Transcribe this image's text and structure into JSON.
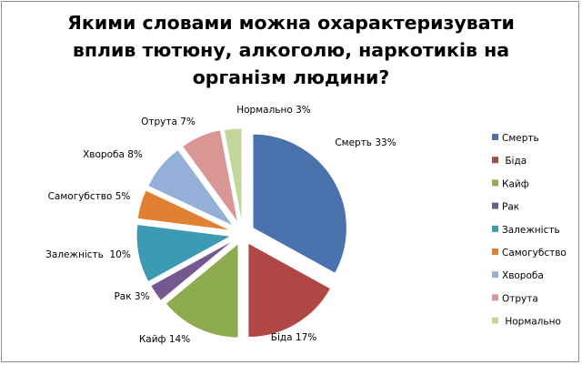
{
  "chart_data": {
    "type": "pie",
    "title": "Якими словами можна охарактеризувати\nвплив тютюну, алкоголю, наркотиків на\nорганізм людини?",
    "exploded": true,
    "legend_position": "right",
    "slices": [
      {
        "name": "Смерть",
        "legend_label": "Смерть",
        "value": 33,
        "label": "Смерть 33%",
        "color": "#4a73ad"
      },
      {
        "name": "Біда",
        "legend_label": " Біда",
        "value": 17,
        "label": "Біда 17%",
        "color": "#b04744"
      },
      {
        "name": "Кайф",
        "legend_label": "Кайф",
        "value": 14,
        "label": "Кайф 14%",
        "color": "#8fab4f"
      },
      {
        "name": "Рак",
        "legend_label": "Рак",
        "value": 3,
        "label": "Рак 3%",
        "color": "#73598f"
      },
      {
        "name": "Залежність",
        "legend_label": "Залежність",
        "value": 10,
        "label": "Залежність  10%",
        "color": "#3c9bb3"
      },
      {
        "name": "Самогубство",
        "legend_label": "Самогубство",
        "value": 5,
        "label": "Самогубство 5%",
        "color": "#df8130"
      },
      {
        "name": "Хвороба",
        "legend_label": "Хвороба",
        "value": 8,
        "label": "Хвороба 8%",
        "color": "#95b0d8"
      },
      {
        "name": "Отрута",
        "legend_label": "Отрута",
        "value": 7,
        "label": "Отрута 7%",
        "color": "#d99695"
      },
      {
        "name": "Нормально",
        "legend_label": " Нормально",
        "value": 3,
        "label": "Нормально 3%",
        "color": "#c3d69b"
      }
    ]
  }
}
